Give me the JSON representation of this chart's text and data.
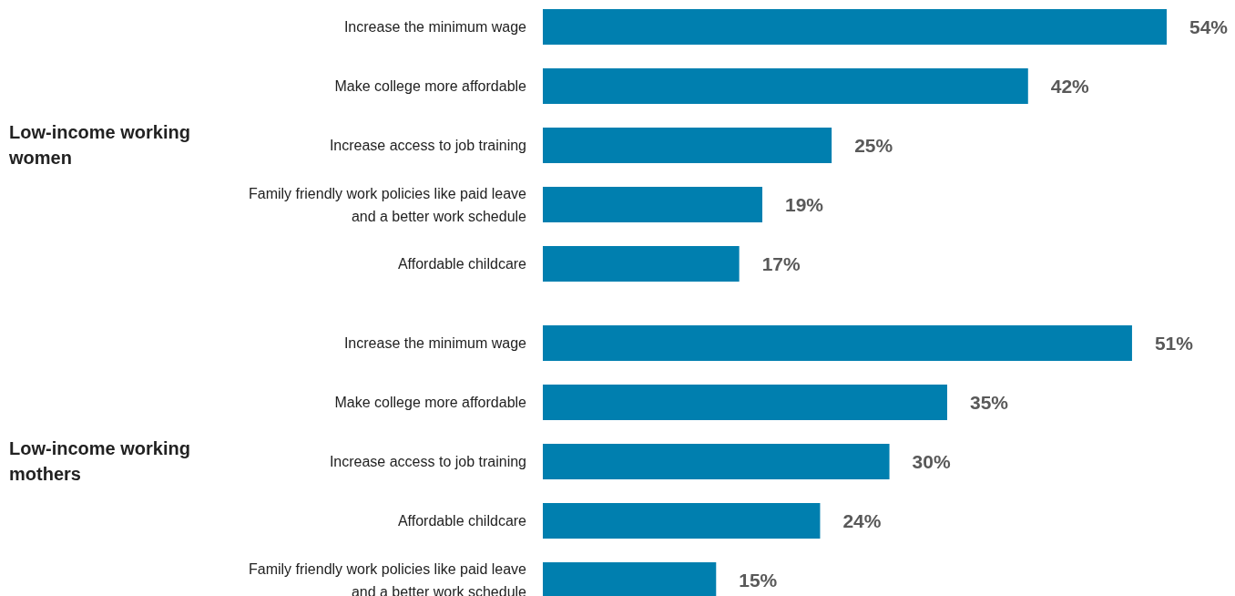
{
  "chart_data": [
    {
      "type": "bar",
      "orientation": "horizontal",
      "title": "Low-income working women",
      "categories": [
        "Increase the minimum wage",
        "Make college more affordable",
        "Increase access to job training",
        "Family friendly work policies like paid leave and a better work schedule",
        "Affordable childcare"
      ],
      "values": [
        54,
        42,
        25,
        19,
        17
      ],
      "color": "#007faf",
      "value_labels": [
        "54%",
        "42%",
        "25%",
        "19%",
        "17%"
      ]
    },
    {
      "type": "bar",
      "orientation": "horizontal",
      "title": "Low-income working mothers",
      "categories": [
        "Increase the minimum wage",
        "Make college more affordable",
        "Increase access to job training",
        "Affordable childcare",
        "Family friendly work policies like paid leave and a better work schedule"
      ],
      "values": [
        51,
        35,
        30,
        24,
        15
      ],
      "color": "#007faf",
      "value_labels": [
        "51%",
        "35%",
        "30%",
        "24%",
        "15%"
      ]
    }
  ]
}
